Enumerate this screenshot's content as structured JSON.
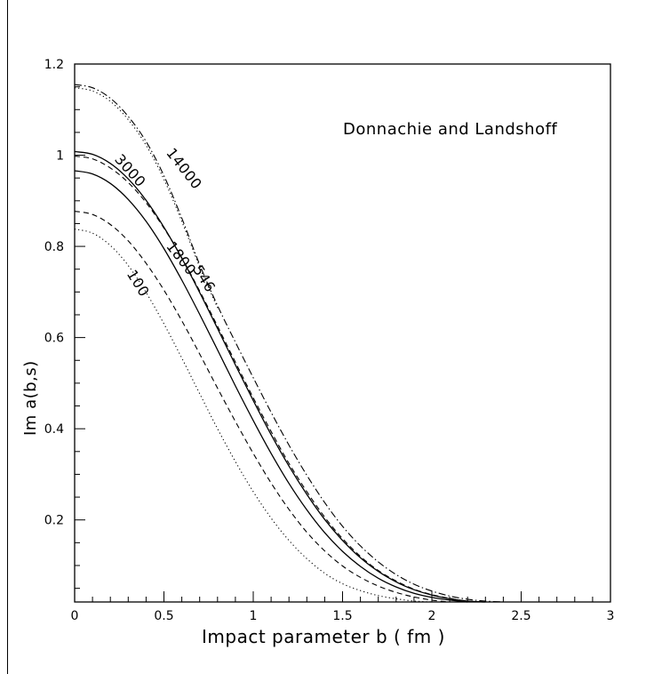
{
  "chart_data": {
    "type": "line",
    "title": "",
    "annotation": "Donnachie and Landshoff",
    "xlabel": "Impact parameter  b ( fm )",
    "ylabel": "Im a(b,s)",
    "xlim": [
      0,
      3
    ],
    "ylim": [
      0.02,
      1.2
    ],
    "xticks": [
      0,
      0.5,
      1,
      1.5,
      2,
      2.5,
      3
    ],
    "xtick_labels": [
      "0",
      "0.5",
      "1",
      "1.5",
      "2",
      "2.5",
      "3"
    ],
    "yticks": [
      0.2,
      0.4,
      0.6,
      0.8,
      1.0,
      1.2
    ],
    "ytick_labels": [
      "0.2",
      "0.4",
      "0.6",
      "0.8",
      "1",
      "1.2"
    ],
    "grid": false,
    "series": [
      {
        "name": "100",
        "style": "dotted",
        "x": [
          0,
          0.1,
          0.2,
          0.3,
          0.4,
          0.5,
          0.6,
          0.7,
          0.8,
          0.9,
          1.0,
          1.1,
          1.2,
          1.3,
          1.4,
          1.5,
          1.6,
          1.7,
          1.8,
          1.9,
          2.0
        ],
        "y": [
          0.838,
          0.829,
          0.802,
          0.758,
          0.699,
          0.63,
          0.555,
          0.477,
          0.4,
          0.328,
          0.262,
          0.204,
          0.155,
          0.115,
          0.083,
          0.06,
          0.045,
          0.034,
          0.027,
          0.022,
          0.02
        ]
      },
      {
        "name": "546",
        "style": "dashed",
        "x": [
          0,
          0.1,
          0.2,
          0.3,
          0.4,
          0.5,
          0.6,
          0.7,
          0.8,
          0.9,
          1.0,
          1.1,
          1.2,
          1.3,
          1.4,
          1.5,
          1.6,
          1.7,
          1.8,
          1.9,
          2.0,
          2.1
        ],
        "y": [
          0.877,
          0.87,
          0.848,
          0.812,
          0.763,
          0.704,
          0.637,
          0.564,
          0.489,
          0.416,
          0.346,
          0.281,
          0.223,
          0.173,
          0.132,
          0.099,
          0.074,
          0.055,
          0.041,
          0.031,
          0.024,
          0.02
        ]
      },
      {
        "name": "1800",
        "style": "solid",
        "x": [
          0,
          0.1,
          0.2,
          0.3,
          0.4,
          0.5,
          0.6,
          0.7,
          0.8,
          0.9,
          1.0,
          1.1,
          1.2,
          1.3,
          1.4,
          1.5,
          1.6,
          1.7,
          1.8,
          1.9,
          2.0,
          2.1,
          2.2
        ],
        "y": [
          0.966,
          0.959,
          0.938,
          0.903,
          0.855,
          0.795,
          0.726,
          0.651,
          0.573,
          0.494,
          0.418,
          0.346,
          0.28,
          0.222,
          0.172,
          0.131,
          0.098,
          0.072,
          0.053,
          0.039,
          0.03,
          0.024,
          0.02
        ]
      },
      {
        "name": "3000",
        "style": "solid",
        "x": [
          0,
          0.1,
          0.2,
          0.3,
          0.4,
          0.5,
          0.6,
          0.7,
          0.8,
          0.9,
          1.0,
          1.1,
          1.2,
          1.3,
          1.4,
          1.5,
          1.6,
          1.7,
          1.8,
          1.9,
          2.0,
          2.1,
          2.2,
          2.3
        ],
        "y": [
          1.008,
          1.002,
          0.982,
          0.948,
          0.901,
          0.842,
          0.774,
          0.699,
          0.62,
          0.54,
          0.462,
          0.387,
          0.318,
          0.256,
          0.201,
          0.155,
          0.117,
          0.087,
          0.064,
          0.047,
          0.035,
          0.027,
          0.022,
          0.02
        ]
      },
      {
        "name": "3000 dashed",
        "style": "dashed",
        "x": [
          0,
          0.1,
          0.2,
          0.3,
          0.4,
          0.5,
          0.6,
          0.7,
          0.8,
          0.9,
          1.0,
          1.1,
          1.2,
          1.3,
          1.4,
          1.5,
          1.6,
          1.7,
          1.8,
          1.9,
          2.0,
          2.1,
          2.2,
          2.3
        ],
        "y": [
          0.998,
          0.992,
          0.972,
          0.94,
          0.896,
          0.84,
          0.775,
          0.702,
          0.625,
          0.546,
          0.468,
          0.394,
          0.324,
          0.262,
          0.206,
          0.159,
          0.12,
          0.089,
          0.066,
          0.048,
          0.036,
          0.028,
          0.022,
          0.02
        ]
      },
      {
        "name": "14000",
        "style": "dashdot",
        "x": [
          0,
          0.1,
          0.2,
          0.3,
          0.4,
          0.5,
          0.6,
          0.7,
          0.8,
          0.9,
          1.0,
          1.1,
          1.2,
          1.3,
          1.4,
          1.5,
          1.6,
          1.7,
          1.8,
          1.9,
          2.0,
          2.1,
          2.2,
          2.3,
          2.4
        ],
        "y": [
          1.155,
          1.148,
          1.125,
          1.085,
          1.03,
          0.955,
          0.862,
          0.76,
          0.67,
          0.59,
          0.512,
          0.436,
          0.364,
          0.298,
          0.238,
          0.186,
          0.143,
          0.108,
          0.08,
          0.059,
          0.044,
          0.033,
          0.026,
          0.022,
          0.02
        ]
      },
      {
        "name": "14000 dotted",
        "style": "dotted",
        "x": [
          0,
          0.1,
          0.2,
          0.3,
          0.4,
          0.5,
          0.6,
          0.7,
          0.8
        ],
        "y": [
          1.148,
          1.141,
          1.118,
          1.078,
          1.022,
          0.947,
          0.855,
          0.755,
          0.665
        ]
      }
    ],
    "curve_labels": [
      {
        "text": "14000",
        "x": 0.51,
        "y": 1.005,
        "rotate": 52
      },
      {
        "text": "3000",
        "x": 0.22,
        "y": 0.99,
        "rotate": 48
      },
      {
        "text": "1800",
        "x": 0.51,
        "y": 0.8,
        "rotate": 52
      },
      {
        "text": "546",
        "x": 0.66,
        "y": 0.75,
        "rotate": 58
      },
      {
        "text": "100",
        "x": 0.29,
        "y": 0.74,
        "rotate": 58
      }
    ]
  }
}
